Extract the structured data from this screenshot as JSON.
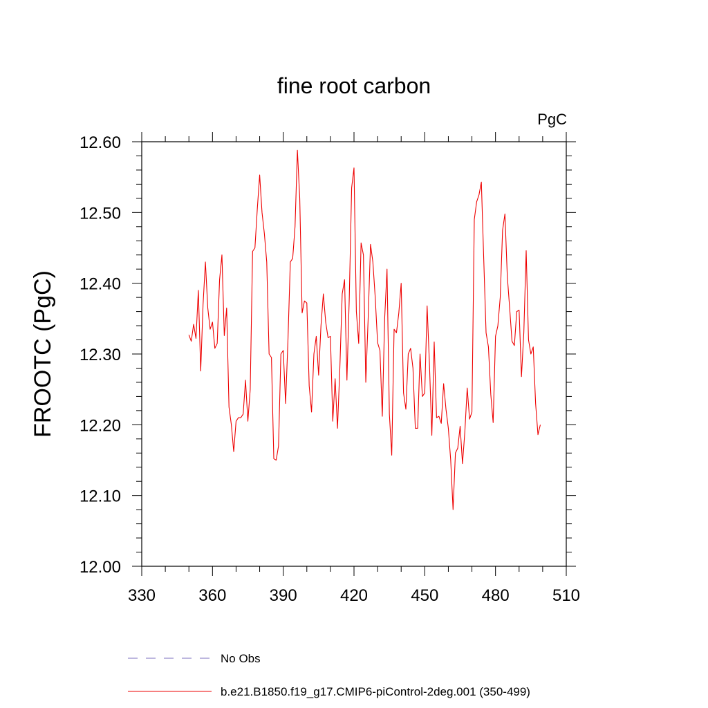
{
  "chart_data": {
    "type": "line",
    "title": "fine root carbon",
    "units": "PgC",
    "ylabel": "FROOTC  (PgC)",
    "xlabel": "",
    "xlim": [
      330,
      510
    ],
    "ylim": [
      12.0,
      12.6
    ],
    "x_ticks": [
      "330",
      "360",
      "390",
      "420",
      "450",
      "480",
      "510"
    ],
    "y_ticks": [
      "12.00",
      "12.10",
      "12.20",
      "12.30",
      "12.40",
      "12.50",
      "12.60"
    ],
    "grid": false,
    "legend_position": "bottom",
    "series": [
      {
        "name": "No Obs",
        "style": "dashed",
        "color": "#7b6fbf",
        "x": [],
        "values": []
      },
      {
        "name": "b.e21.B1850.f19_g17.CMIP6-piControl-2deg.001 (350-499)",
        "style": "solid",
        "color": "#ee0000",
        "x": [
          350,
          351,
          352,
          353,
          354,
          355,
          356,
          357,
          358,
          359,
          360,
          361,
          362,
          363,
          364,
          365,
          366,
          367,
          368,
          369,
          370,
          371,
          372,
          373,
          374,
          375,
          376,
          377,
          378,
          379,
          380,
          381,
          382,
          383,
          384,
          385,
          386,
          387,
          388,
          389,
          390,
          391,
          392,
          393,
          394,
          395,
          396,
          397,
          398,
          399,
          400,
          401,
          402,
          403,
          404,
          405,
          406,
          407,
          408,
          409,
          410,
          411,
          412,
          413,
          414,
          415,
          416,
          417,
          418,
          419,
          420,
          421,
          422,
          423,
          424,
          425,
          426,
          427,
          428,
          429,
          430,
          431,
          432,
          433,
          434,
          435,
          436,
          437,
          438,
          439,
          440,
          441,
          442,
          443,
          444,
          445,
          446,
          447,
          448,
          449,
          450,
          451,
          452,
          453,
          454,
          455,
          456,
          457,
          458,
          459,
          460,
          461,
          462,
          463,
          464,
          465,
          466,
          467,
          468,
          469,
          470,
          471,
          472,
          473,
          474,
          475,
          476,
          477,
          478,
          479,
          480,
          481,
          482,
          483,
          484,
          485,
          486,
          487,
          488,
          489,
          490,
          491,
          492,
          493,
          494,
          495,
          496,
          497,
          498,
          499
        ],
        "values": [
          12.327,
          12.318,
          12.342,
          12.322,
          12.39,
          12.276,
          12.37,
          12.43,
          12.365,
          12.335,
          12.345,
          12.308,
          12.315,
          12.405,
          12.44,
          12.326,
          12.365,
          12.225,
          12.2,
          12.162,
          12.205,
          12.21,
          12.21,
          12.215,
          12.263,
          12.205,
          12.25,
          12.445,
          12.45,
          12.505,
          12.553,
          12.5,
          12.47,
          12.43,
          12.3,
          12.295,
          12.152,
          12.15,
          12.17,
          12.3,
          12.305,
          12.23,
          12.32,
          12.43,
          12.435,
          12.48,
          12.588,
          12.52,
          12.358,
          12.375,
          12.372,
          12.255,
          12.218,
          12.3,
          12.325,
          12.27,
          12.34,
          12.385,
          12.345,
          12.323,
          12.325,
          12.205,
          12.265,
          12.195,
          12.28,
          12.385,
          12.405,
          12.263,
          12.38,
          12.535,
          12.563,
          12.36,
          12.315,
          12.457,
          12.44,
          12.26,
          12.35,
          12.455,
          12.43,
          12.38,
          12.316,
          12.305,
          12.212,
          12.35,
          12.42,
          12.215,
          12.157,
          12.335,
          12.33,
          12.358,
          12.4,
          12.245,
          12.222,
          12.3,
          12.308,
          12.28,
          12.195,
          12.195,
          12.3,
          12.24,
          12.245,
          12.368,
          12.285,
          12.185,
          12.317,
          12.21,
          12.212,
          12.202,
          12.258,
          12.222,
          12.195,
          12.15,
          12.08,
          12.16,
          12.167,
          12.198,
          12.145,
          12.19,
          12.252,
          12.208,
          12.218,
          12.49,
          12.515,
          12.525,
          12.543,
          12.435,
          12.33,
          12.31,
          12.243,
          12.203,
          12.325,
          12.34,
          12.38,
          12.475,
          12.498,
          12.41,
          12.365,
          12.318,
          12.312,
          12.36,
          12.362,
          12.268,
          12.33,
          12.446,
          12.32,
          12.3,
          12.31,
          12.23,
          12.186,
          12.2
        ]
      }
    ]
  },
  "colors": {
    "line": "#ee0000",
    "no_obs": "#7b6fbf",
    "axis": "#000000"
  }
}
